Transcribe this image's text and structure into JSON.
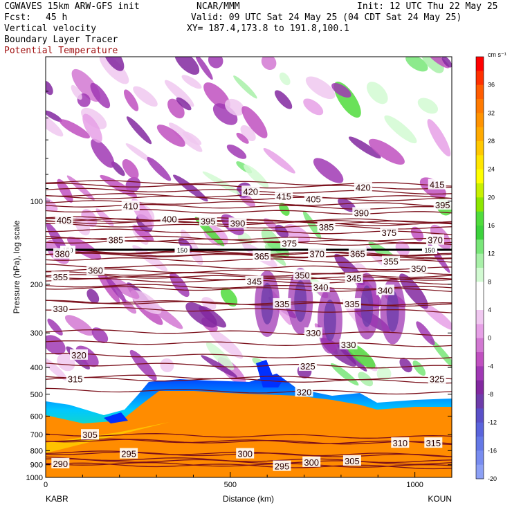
{
  "header": {
    "model": "CGWAVES 15km ARW-GFS init",
    "center": "NCAR/MMM",
    "init": "Init: 12 UTC Thu 22 May 25",
    "fcst_label": "Fcst:",
    "fcst_value": "45 h",
    "valid": "Valid: 09 UTC Sat 24 May 25 (04 CDT Sat 24 May 25)",
    "xy": "XY= 187.4,173.8 to 191.8,100.1",
    "field1": "Vertical velocity",
    "field2": "Boundary Layer Tracer",
    "field3": "Potential Temperature"
  },
  "colors": {
    "theta_contour": "#7a0f1a",
    "tracer_orange": "#ff8c00",
    "header_red": "#a01010"
  },
  "chart_data": {
    "type": "heatmap",
    "xlabel": "Distance (km)",
    "ylabel": "Pressure (hPa), log scale",
    "x_ticks": [
      "0",
      "500",
      "1000"
    ],
    "y_ticks": [
      "100",
      "200",
      "300",
      "400",
      "500",
      "600",
      "700",
      "800",
      "900",
      "1000"
    ],
    "xlim": [
      0,
      1100
    ],
    "ylim": [
      1000,
      30
    ],
    "y_scale": "log",
    "left_station": "KABR",
    "right_station": "KOUN",
    "colorbar": {
      "units": "cm s⁻¹",
      "labels": [
        "36",
        "32",
        "28",
        "24",
        "20",
        "16",
        "12",
        "8",
        "4",
        "0",
        "-4",
        "-8",
        "-12",
        "-16",
        "-20"
      ],
      "colors": [
        "#ff0000",
        "#ff3000",
        "#ff5c00",
        "#ff7a00",
        "#ff9300",
        "#ffaa00",
        "#ffc800",
        "#ffe600",
        "#ffff00",
        "#c8f000",
        "#8ce600",
        "#50dc3c",
        "#3cd23c",
        "#78e678",
        "#a8f0a8",
        "#d2fad2",
        "#ffffff",
        "#ffffff",
        "#f0c8f0",
        "#e6a0e6",
        "#d278d2",
        "#c050c0",
        "#a038b4",
        "#8228a0",
        "#6e3caa",
        "#5a50c8",
        "#5a64dc",
        "#6478e6",
        "#788cf0",
        "#8ca0f5"
      ]
    },
    "isentropes": [
      {
        "theta": 290,
        "p": 890,
        "x_label": 40
      },
      {
        "theta": 295,
        "p": 820,
        "x_label": 225
      },
      {
        "theta": 300,
        "p": 820,
        "x_label": 540
      },
      {
        "theta": 295,
        "p": 910,
        "x_label": 640
      },
      {
        "theta": 300,
        "p": 880,
        "x_label": 720
      },
      {
        "theta": 305,
        "p": 870,
        "x_label": 830
      },
      {
        "theta": 305,
        "p": 700,
        "x_label": 120
      },
      {
        "theta": 310,
        "p": 750,
        "x_label": 960
      },
      {
        "theta": 315,
        "p": 750,
        "x_label": 1050
      },
      {
        "theta": 315,
        "p": 440,
        "x_label": 80
      },
      {
        "theta": 320,
        "p": 360,
        "x_label": 90
      },
      {
        "theta": 320,
        "p": 490,
        "x_label": 700
      },
      {
        "theta": 325,
        "p": 395,
        "x_label": 710
      },
      {
        "theta": 325,
        "p": 440,
        "x_label": 1060
      },
      {
        "theta": 330,
        "p": 245,
        "x_label": 40
      },
      {
        "theta": 330,
        "p": 300,
        "x_label": 725
      },
      {
        "theta": 330,
        "p": 330,
        "x_label": 820
      },
      {
        "theta": 335,
        "p": 235,
        "x_label": 640
      },
      {
        "theta": 335,
        "p": 235,
        "x_label": 830
      },
      {
        "theta": 340,
        "p": 205,
        "x_label": 745
      },
      {
        "theta": 340,
        "p": 210,
        "x_label": 920
      },
      {
        "theta": 345,
        "p": 195,
        "x_label": 565
      },
      {
        "theta": 345,
        "p": 190,
        "x_label": 835
      },
      {
        "theta": 350,
        "p": 185,
        "x_label": 695
      },
      {
        "theta": 350,
        "p": 175,
        "x_label": 1010
      },
      {
        "theta": 355,
        "p": 188,
        "x_label": 40
      },
      {
        "theta": 355,
        "p": 165,
        "x_label": 935
      },
      {
        "theta": 360,
        "p": 178,
        "x_label": 135
      },
      {
        "theta": 365,
        "p": 158,
        "x_label": 585
      },
      {
        "theta": 365,
        "p": 155,
        "x_label": 845
      },
      {
        "theta": 370,
        "p": 155,
        "x_label": 735
      },
      {
        "theta": 370,
        "p": 138,
        "x_label": 1055
      },
      {
        "theta": 375,
        "p": 142,
        "x_label": 660
      },
      {
        "theta": 375,
        "p": 130,
        "x_label": 930
      },
      {
        "theta": 380,
        "p": 155,
        "x_label": 45
      },
      {
        "theta": 385,
        "p": 138,
        "x_label": 190
      },
      {
        "theta": 385,
        "p": 124,
        "x_label": 760
      },
      {
        "theta": 390,
        "p": 120,
        "x_label": 520
      },
      {
        "theta": 390,
        "p": 110,
        "x_label": 855
      },
      {
        "theta": 395,
        "p": 118,
        "x_label": 440
      },
      {
        "theta": 395,
        "p": 103,
        "x_label": 1075
      },
      {
        "theta": 400,
        "p": 116,
        "x_label": 335
      },
      {
        "theta": 405,
        "p": 117,
        "x_label": 50
      },
      {
        "theta": 405,
        "p": 98,
        "x_label": 725
      },
      {
        "theta": 410,
        "p": 104,
        "x_label": 230
      },
      {
        "theta": 415,
        "p": 96,
        "x_label": 645
      },
      {
        "theta": 415,
        "p": 87,
        "x_label": 1060
      },
      {
        "theta": 420,
        "p": 92,
        "x_label": 555
      },
      {
        "theta": 420,
        "p": 89,
        "x_label": 860
      }
    ],
    "tropopause_marker": {
      "label": "150",
      "p": 150,
      "positions_km": [
        60,
        370,
        1040
      ]
    }
  }
}
